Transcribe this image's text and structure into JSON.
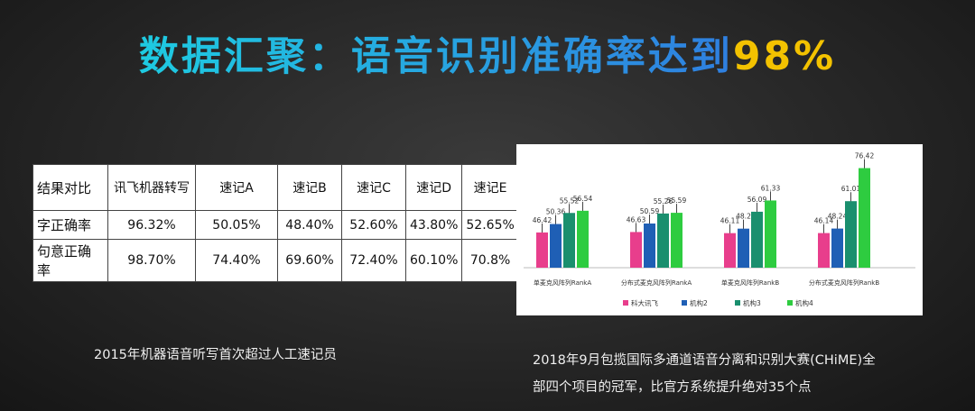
{
  "title": {
    "main": "数据汇聚：语音识别准确率达到",
    "highlight": "98%"
  },
  "table": {
    "headers": [
      "结果对比",
      "讯飞机器转写",
      "速记A",
      "速记B",
      "速记C",
      "速记D",
      "速记E"
    ],
    "rows": [
      {
        "label": "字正确率",
        "values": [
          "96.32%",
          "50.05%",
          "48.40%",
          "52.60%",
          "43.80%",
          "52.65%"
        ]
      },
      {
        "label": "句意正确率",
        "values": [
          "98.70%",
          "74.40%",
          "69.60%",
          "72.40%",
          "60.10%",
          "70.8%"
        ]
      }
    ]
  },
  "captions": {
    "left": "2015年机器语音听写首次超过人工速记员",
    "right_line1": "2018年9月包揽国际多通道语音分离和识别大赛(CHiME)全",
    "right_line2": "部四个项目的冠军，比官方系统提升绝对35个点"
  },
  "chart_data": {
    "type": "bar",
    "categories": [
      "单麦克风阵列RankA",
      "分布式麦克风阵列RankA",
      "单麦克风阵列RankB",
      "分布式麦克风阵列RankB"
    ],
    "series": [
      {
        "name": "科大讯飞",
        "color": "#e83e8c",
        "values": [
          46.42,
          46.63,
          46.11,
          46.14
        ]
      },
      {
        "name": "机构2",
        "color": "#1f5fb5",
        "values": [
          50.36,
          50.59,
          48.2,
          48.24
        ]
      },
      {
        "name": "机构3",
        "color": "#1a8f6e",
        "values": [
          55.52,
          55.26,
          56.09,
          61.01
        ]
      },
      {
        "name": "机构4",
        "color": "#2ecc40",
        "values": [
          56.54,
          55.59,
          61.33,
          76.42
        ]
      }
    ],
    "ylim": [
      30,
      80
    ],
    "grid": false,
    "legend": "bottom"
  }
}
